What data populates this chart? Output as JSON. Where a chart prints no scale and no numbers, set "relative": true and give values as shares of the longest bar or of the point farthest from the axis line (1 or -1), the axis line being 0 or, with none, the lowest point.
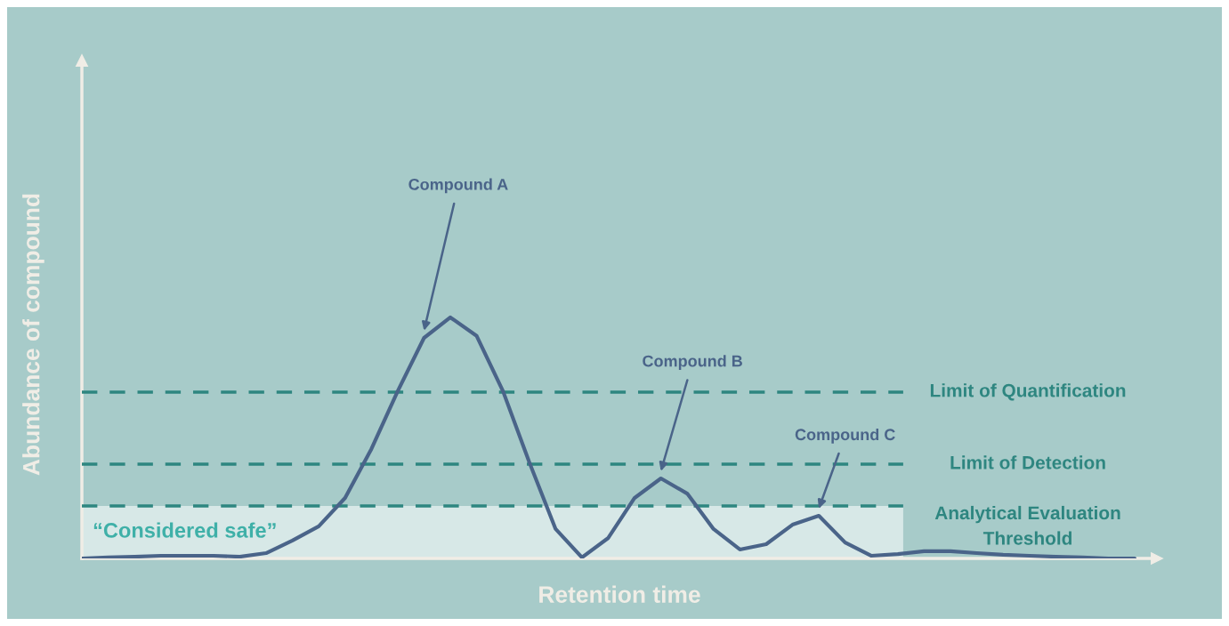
{
  "chart_data": {
    "type": "line",
    "relative": true,
    "xlabel": "Retention time",
    "ylabel": "Abundance of compound",
    "categories": [
      null,
      null,
      null,
      null,
      null,
      null,
      null,
      null,
      null,
      null,
      null,
      null,
      null,
      null,
      null,
      null,
      null,
      null,
      null,
      null,
      null,
      null,
      null,
      null,
      null,
      null,
      null,
      null,
      null,
      null,
      null,
      null,
      null,
      null,
      null,
      null,
      null,
      null,
      null,
      null,
      null
    ],
    "series": [
      {
        "color": "#4a6489",
        "values": [
          0,
          0.004,
          0.007,
          0.011,
          0.011,
          0.011,
          0.007,
          0.022,
          0.074,
          0.133,
          0.251,
          0.454,
          0.694,
          0.915,
          1,
          0.923,
          0.694,
          0.399,
          0.122,
          0.004,
          0.085,
          0.251,
          0.332,
          0.269,
          0.122,
          0.037,
          0.059,
          0.14,
          0.177,
          0.066,
          0.011,
          0.018,
          0.03,
          0.03,
          0.022,
          0.015,
          0.011,
          0.007,
          0.004,
          0,
          0
        ]
      }
    ],
    "ref_lines": [
      {
        "axis": "y",
        "value": 0.69,
        "label": "Limit of Quantification",
        "color": "#2e8680",
        "line_style": "dashed"
      },
      {
        "axis": "y",
        "value": 0.391,
        "label": "Limit of Detection",
        "color": "#2e8680",
        "line_style": "dashed"
      },
      {
        "axis": "y",
        "value": 0.218,
        "label": "Analytical Evaluation\nThreshold",
        "color": "#2e8680",
        "line_style": "dashed"
      }
    ],
    "bands": [
      {
        "axis": "y",
        "from": 0,
        "to": 0.218,
        "label": "“Considered safe”",
        "color": "#ffffff"
      }
    ],
    "annotations": [
      "Compound A",
      "Compound B",
      "Compound C"
    ]
  }
}
